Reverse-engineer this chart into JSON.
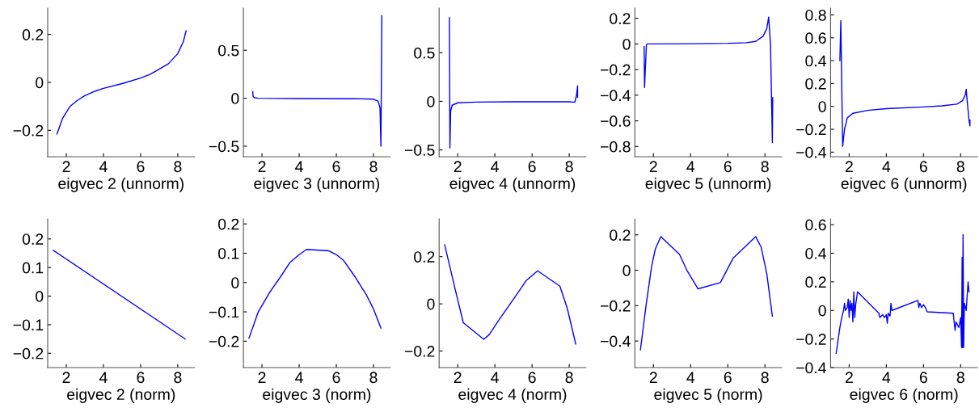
{
  "chart_data": [
    {
      "type": "line",
      "xlabel": "eigvec 2 (unnorm)",
      "xlim": [
        1,
        8.9
      ],
      "ylim": [
        -0.31,
        0.31
      ],
      "xticks": [
        2,
        4,
        6,
        8
      ],
      "yticks": [
        -0.2,
        0,
        0.2
      ],
      "series": [
        {
          "color": "#0000ff",
          "x": [
            1.5,
            1.8,
            2.2,
            2.6,
            3.0,
            3.5,
            4,
            5,
            6,
            6.5,
            7,
            7.5,
            8,
            8.3,
            8.45
          ],
          "values": [
            -0.215,
            -0.15,
            -0.1,
            -0.075,
            -0.055,
            -0.038,
            -0.025,
            -0.005,
            0.018,
            0.033,
            0.055,
            0.078,
            0.12,
            0.17,
            0.215
          ]
        }
      ]
    },
    {
      "type": "line",
      "xlabel": "eigvec 3 (unnorm)",
      "xlim": [
        1,
        8.9
      ],
      "ylim": [
        -0.61,
        0.94
      ],
      "xticks": [
        2,
        4,
        6,
        8
      ],
      "yticks": [
        -0.5,
        0,
        0.5
      ],
      "series": [
        {
          "color": "#0000ff",
          "x": [
            1.5,
            1.52,
            1.6,
            1.8,
            4,
            7,
            8.0,
            8.25,
            8.35,
            8.4,
            8.45
          ],
          "values": [
            0.07,
            0.02,
            0.005,
            0.0,
            -0.003,
            -0.005,
            -0.01,
            -0.03,
            -0.1,
            -0.5,
            0.86
          ]
        }
      ]
    },
    {
      "type": "line",
      "xlabel": "eigvec 4 (unnorm)",
      "xlim": [
        1,
        8.9
      ],
      "ylim": [
        -0.57,
        0.96
      ],
      "xticks": [
        2,
        4,
        6,
        8
      ],
      "yticks": [
        -0.5,
        0,
        0.5
      ],
      "series": [
        {
          "color": "#0000ff",
          "x": [
            1.55,
            1.58,
            1.62,
            1.7,
            2,
            3,
            5,
            8,
            8.3,
            8.4,
            8.45,
            8.45
          ],
          "values": [
            0.86,
            -0.48,
            -0.1,
            -0.04,
            -0.015,
            -0.008,
            -0.005,
            -0.005,
            -0.01,
            0.07,
            0.16,
            0.04
          ]
        }
      ]
    },
    {
      "type": "line",
      "xlabel": "eigvec 5 (unnorm)",
      "xlim": [
        1,
        8.9
      ],
      "ylim": [
        -0.88,
        0.28
      ],
      "xticks": [
        2,
        4,
        6,
        8
      ],
      "yticks": [
        -0.8,
        -0.6,
        -0.4,
        -0.2,
        0,
        0.2
      ],
      "series": [
        {
          "color": "#0000ff",
          "x": [
            1.5,
            1.52,
            1.62,
            1.65,
            1.8,
            4,
            6,
            7,
            7.5,
            7.9,
            8.1,
            8.2,
            8.3,
            8.4,
            8.42
          ],
          "values": [
            -0.02,
            -0.34,
            -0.01,
            0.0,
            0.0,
            0.002,
            0.005,
            0.01,
            0.02,
            0.06,
            0.12,
            0.21,
            0.0,
            -0.77,
            -0.42
          ]
        }
      ]
    },
    {
      "type": "line",
      "xlabel": "eigvec 6 (unnorm)",
      "xlim": [
        1,
        8.9
      ],
      "ylim": [
        -0.44,
        0.86
      ],
      "xticks": [
        2,
        4,
        6,
        8
      ],
      "yticks": [
        -0.4,
        -0.2,
        0,
        0.2,
        0.4,
        0.6,
        0.8
      ],
      "series": [
        {
          "color": "#0000ff",
          "x": [
            1.5,
            1.55,
            1.6,
            1.65,
            1.75,
            1.9,
            2.2,
            3,
            4,
            6,
            7,
            7.8,
            8.1,
            8.25,
            8.3,
            8.35,
            8.45,
            8.5,
            8.5
          ],
          "values": [
            0.4,
            0.75,
            0.2,
            -0.35,
            -0.2,
            -0.1,
            -0.06,
            -0.035,
            -0.02,
            -0.005,
            0.005,
            0.02,
            0.05,
            0.1,
            0.15,
            0.05,
            -0.12,
            -0.17,
            -0.12
          ]
        }
      ]
    },
    {
      "type": "line",
      "xlabel": "eigvec 2 (norm)",
      "xlim": [
        1,
        8.9
      ],
      "ylim": [
        -0.25,
        0.27
      ],
      "xticks": [
        2,
        4,
        6,
        8
      ],
      "yticks": [
        -0.2,
        -0.1,
        0,
        0.1,
        0.2
      ],
      "series": [
        {
          "color": "#0000ff",
          "x": [
            1.3,
            8.4
          ],
          "values": [
            0.16,
            -0.15
          ]
        }
      ]
    },
    {
      "type": "line",
      "xlabel": "eigvec 3 (norm)",
      "xlim": [
        1,
        8.9
      ],
      "ylim": [
        -0.29,
        0.217
      ],
      "xticks": [
        2,
        4,
        6,
        8
      ],
      "yticks": [
        -0.2,
        -0.1,
        0,
        0.1,
        0.2
      ],
      "series": [
        {
          "color": "#0000ff",
          "x": [
            1.3,
            1.8,
            2.4,
            3,
            3.5,
            4,
            4.4,
            5.6,
            6.0,
            6.4,
            7,
            7.6,
            8,
            8.4
          ],
          "values": [
            -0.19,
            -0.1,
            -0.035,
            0.02,
            0.068,
            0.095,
            0.113,
            0.108,
            0.095,
            0.075,
            0.02,
            -0.04,
            -0.09,
            -0.155
          ]
        }
      ]
    },
    {
      "type": "line",
      "xlabel": "eigvec 4 (norm)",
      "xlim": [
        1,
        8.9
      ],
      "ylim": [
        -0.27,
        0.36
      ],
      "xticks": [
        2,
        4,
        6,
        8
      ],
      "yticks": [
        -0.2,
        0,
        0.2
      ],
      "series": [
        {
          "color": "#0000ff",
          "x": [
            1.3,
            1.6,
            1.9,
            2.3,
            3.4,
            3.7,
            4.2,
            5,
            5.7,
            6.3,
            7.5,
            7.9,
            8.35
          ],
          "values": [
            0.25,
            0.15,
            0.05,
            -0.08,
            -0.15,
            -0.13,
            -0.07,
            0.02,
            0.1,
            0.14,
            0.075,
            -0.02,
            -0.17
          ]
        }
      ]
    },
    {
      "type": "line",
      "xlabel": "eigvec 5 (norm)",
      "xlim": [
        1,
        8.9
      ],
      "ylim": [
        -0.55,
        0.29
      ],
      "xticks": [
        2,
        4,
        6,
        8
      ],
      "yticks": [
        -0.4,
        -0.2,
        0,
        0.2
      ],
      "series": [
        {
          "color": "#0000ff",
          "x": [
            1.3,
            1.6,
            1.9,
            2.1,
            2.4,
            3.4,
            3.8,
            4.4,
            5.6,
            6.3,
            7.5,
            7.8,
            8.1,
            8.4
          ],
          "values": [
            -0.45,
            -0.2,
            0.02,
            0.12,
            0.19,
            0.09,
            0.0,
            -0.105,
            -0.07,
            0.07,
            0.19,
            0.13,
            -0.02,
            -0.26
          ]
        }
      ]
    },
    {
      "type": "line",
      "xlabel": "eigvec 6 (norm)",
      "xlim": [
        1,
        8.9
      ],
      "ylim": [
        -0.4,
        0.64
      ],
      "xticks": [
        2,
        4,
        6,
        8
      ],
      "yticks": [
        -0.4,
        -0.2,
        0,
        0.2,
        0.4,
        0.6
      ],
      "series": [
        {
          "color": "#0000ff",
          "x": [
            1.3,
            1.5,
            1.6,
            1.7,
            1.75,
            1.8,
            1.9,
            1.95,
            2.0,
            2.05,
            2.1,
            2.15,
            2.2,
            2.25,
            2.3,
            2.35,
            2.45,
            3.6,
            3.65,
            3.8,
            3.9,
            4.0,
            4.05,
            4.1,
            4.2,
            4.25,
            4.3,
            5.7,
            5.75,
            5.8,
            5.9,
            6.0,
            6.1,
            6.2,
            7.6,
            7.7,
            7.75,
            7.9,
            8.0,
            8.05,
            8.08,
            8.1,
            8.13,
            8.16,
            8.2,
            8.3,
            8.4,
            8.45
          ],
          "values": [
            -0.3,
            -0.12,
            -0.05,
            0.0,
            0.05,
            0.0,
            0.02,
            0.08,
            -0.05,
            0.07,
            0.0,
            0.05,
            -0.08,
            0.13,
            -0.05,
            0.04,
            0.13,
            -0.02,
            -0.05,
            -0.03,
            -0.05,
            -0.03,
            -0.09,
            -0.02,
            -0.04,
            0.05,
            0.0,
            0.07,
            0.02,
            0.05,
            0.02,
            0.04,
            0.02,
            -0.01,
            -0.02,
            -0.14,
            -0.08,
            -0.12,
            -0.05,
            -0.26,
            0.37,
            -0.26,
            0.53,
            -0.26,
            0.05,
            0.0,
            0.2,
            0.13
          ]
        }
      ]
    }
  ]
}
